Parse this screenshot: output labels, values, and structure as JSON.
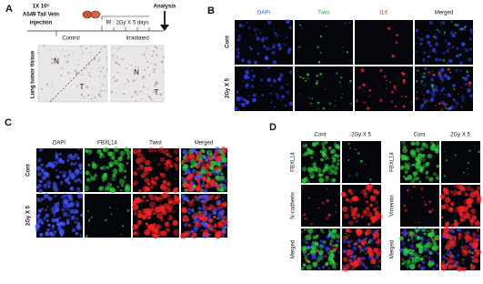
{
  "panel_a": {
    "label": "A",
    "cells": "1X 10⁶",
    "cell_line": "A549  Tail Vein",
    "route": "injection",
    "treatment": "IR : 2Gy X 5 days",
    "endpoint": "Analysis",
    "groups": [
      "Control",
      "Irradiated"
    ],
    "tissue_label": "Lung tumor tissue",
    "regions": [
      [
        "N",
        "T"
      ],
      [
        "N",
        "T"
      ]
    ]
  },
  "panel_b": {
    "label": "B",
    "columns": [
      "DAPI",
      "Twist",
      "IL6",
      "Merged"
    ],
    "rows": [
      "Cont",
      "2Gy X 5"
    ]
  },
  "panel_c": {
    "label": "C",
    "columns": [
      "DAPI",
      "FBXL14",
      "Twist",
      "Merged"
    ],
    "rows": [
      "Cont",
      "2Gy X 5"
    ]
  },
  "panel_d": {
    "label": "D",
    "left": {
      "columns": [
        "Cont",
        "2Gy X 5"
      ],
      "rows": [
        "FBXL14",
        "N-cadherin",
        "Merged"
      ]
    },
    "right": {
      "columns": [
        "Cont",
        "2Gy X 5"
      ],
      "rows": [
        "FBXL14",
        "Vimentin",
        "Merged"
      ]
    }
  }
}
